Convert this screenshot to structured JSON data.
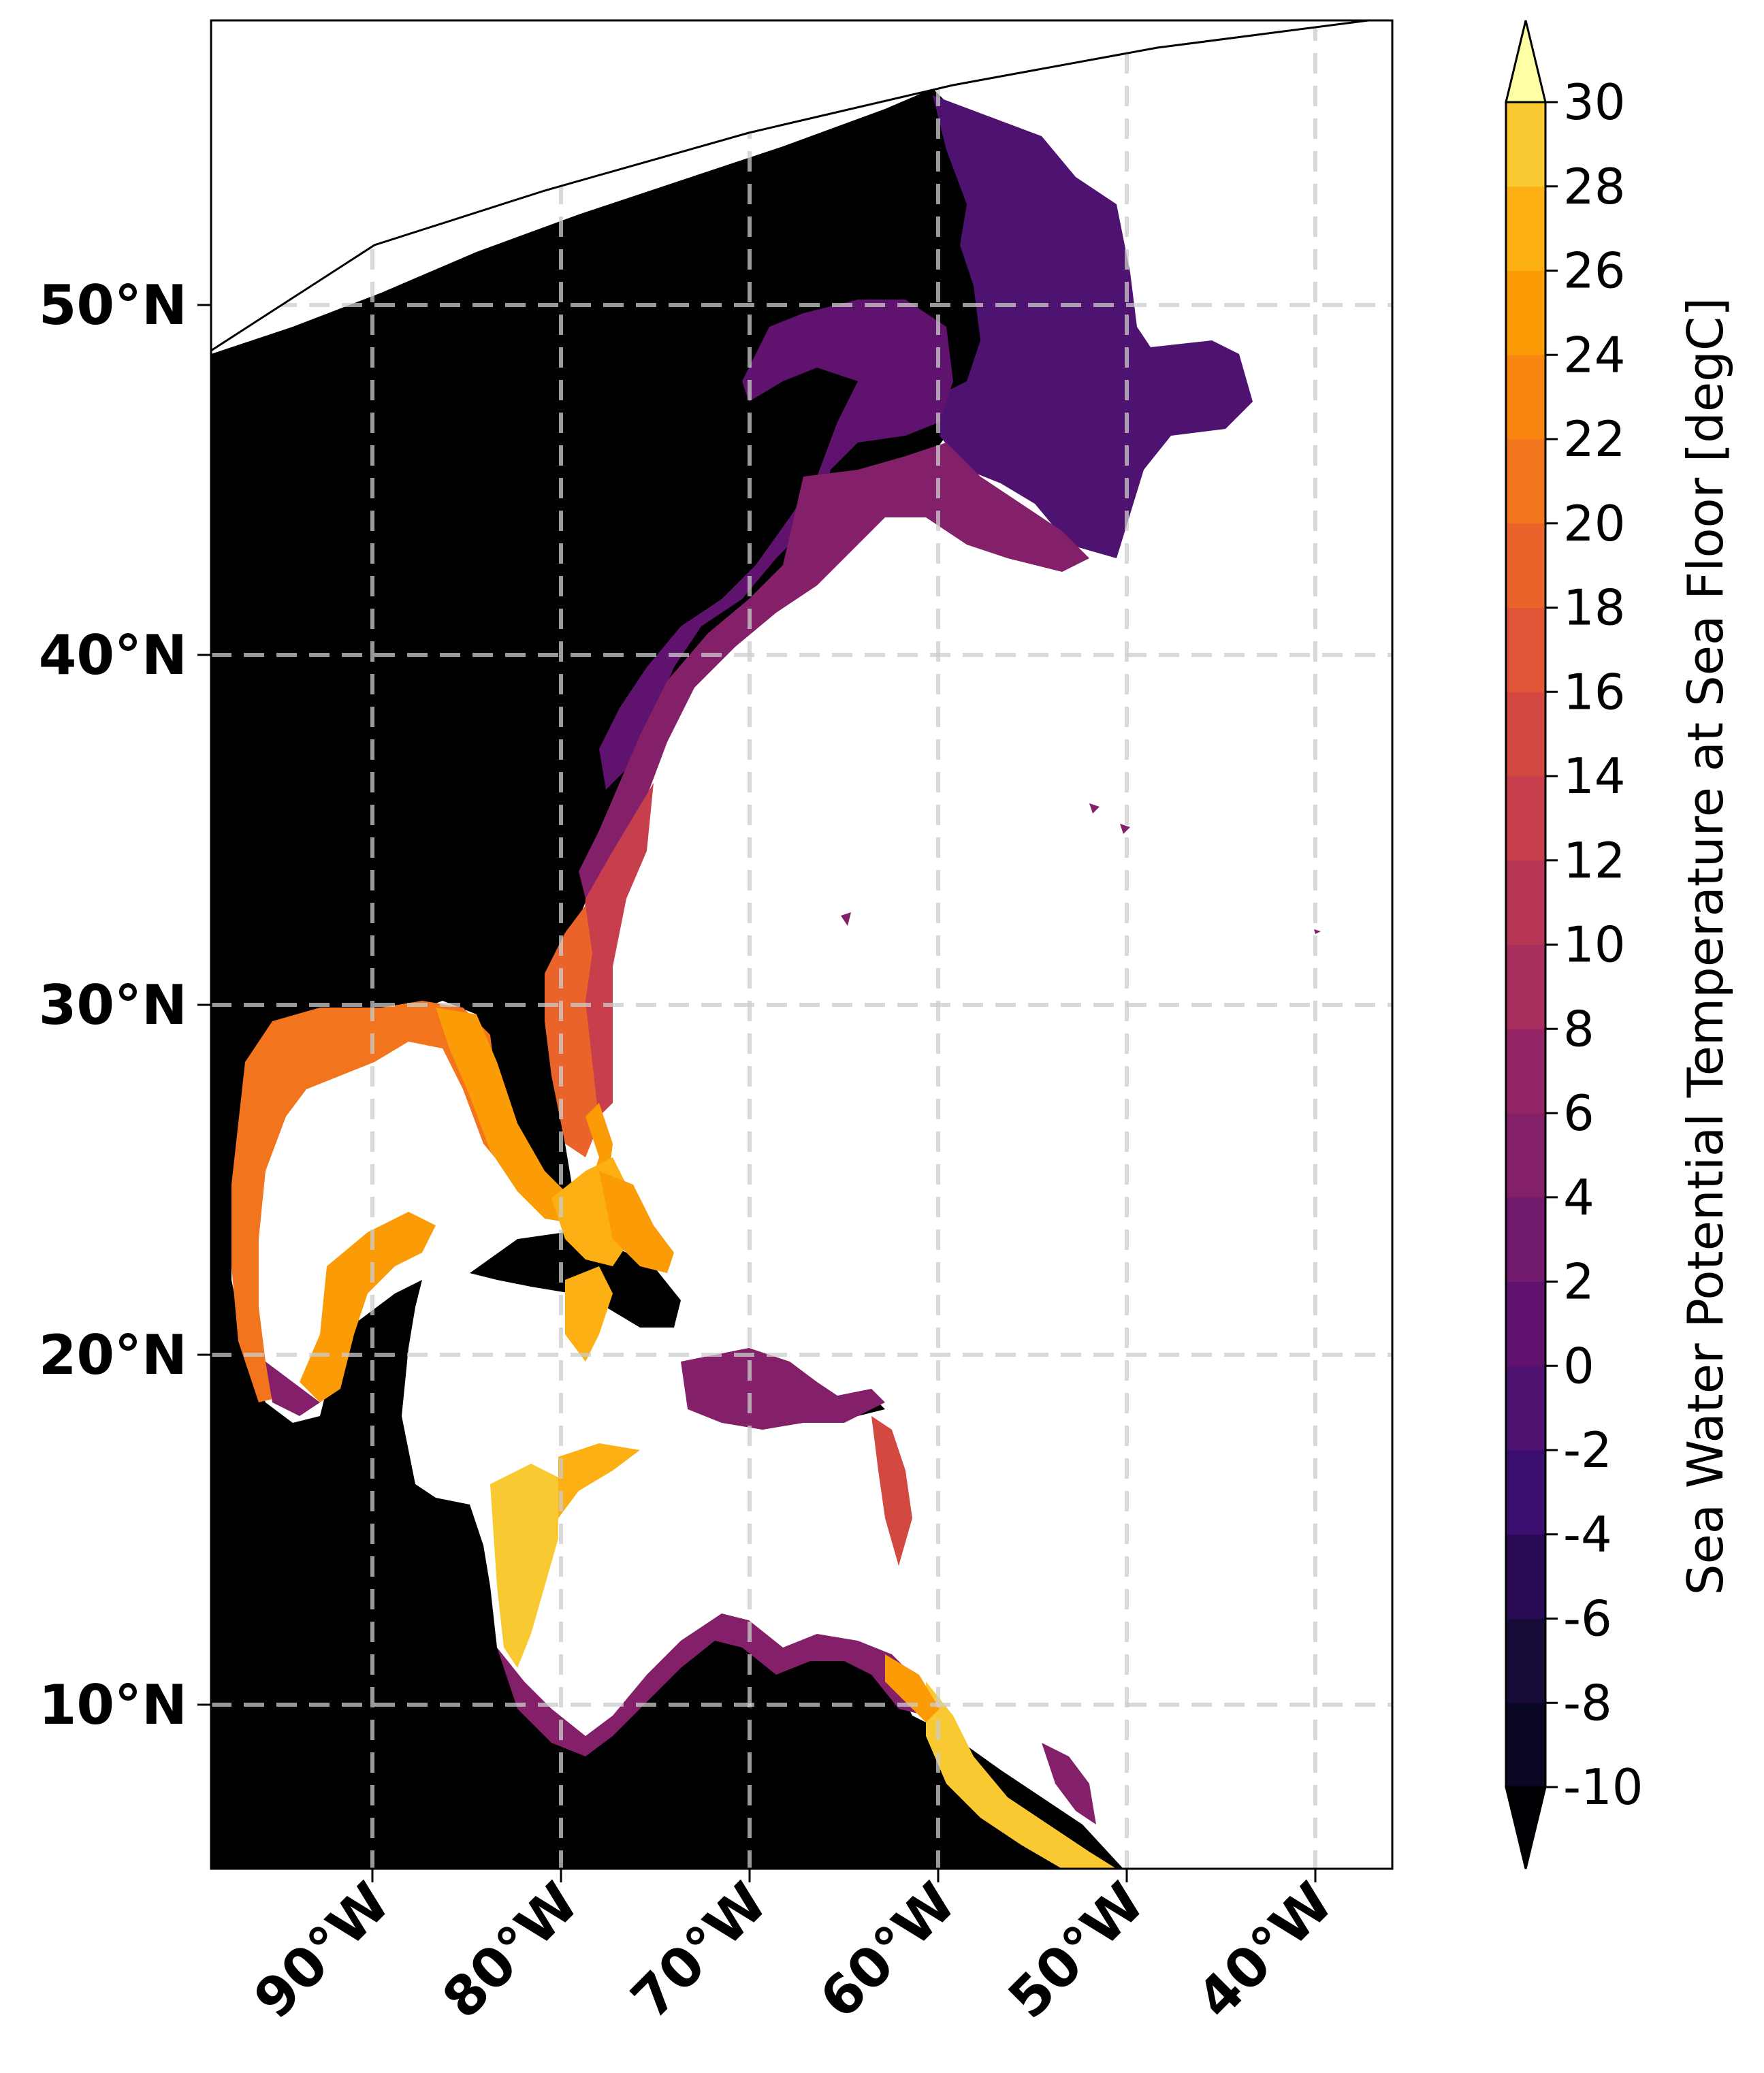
{
  "map": {
    "lat_labels": [
      "50°N",
      "40°N",
      "30°N",
      "20°N",
      "10°N"
    ],
    "lon_labels": [
      "90°W",
      "80°W",
      "70°W",
      "60°W",
      "50°W",
      "40°W"
    ],
    "extent": {
      "lon_min": -98.5,
      "lon_max": -36,
      "lat_min": 5,
      "lat_max": 58
    },
    "land_color": "#000000",
    "deep_ocean_color": "#ffffff"
  },
  "colorbar": {
    "title": "Sea Water Potential Temperature at Sea Floor [degC]",
    "ticks": [
      "30",
      "28",
      "26",
      "24",
      "22",
      "20",
      "18",
      "16",
      "14",
      "12",
      "10",
      "8",
      "6",
      "4",
      "2",
      "0",
      "-2",
      "-4",
      "-6",
      "-8",
      "-10"
    ],
    "min": -10,
    "max": 30,
    "step": 2,
    "extend": "both",
    "colormap": "inferno",
    "colors": [
      "#0a0722",
      "#160b39",
      "#280b54",
      "#3b0f6f",
      "#4e1270",
      "#60136e",
      "#711a6e",
      "#832069",
      "#952666",
      "#a72e5d",
      "#b83655",
      "#c73e4c",
      "#d44842",
      "#e05536",
      "#ea632a",
      "#f2741c",
      "#f8850f",
      "#fb9b06",
      "#fcb014",
      "#f9c932"
    ],
    "under_color": "#000004",
    "over_color": "#fcffa4"
  }
}
